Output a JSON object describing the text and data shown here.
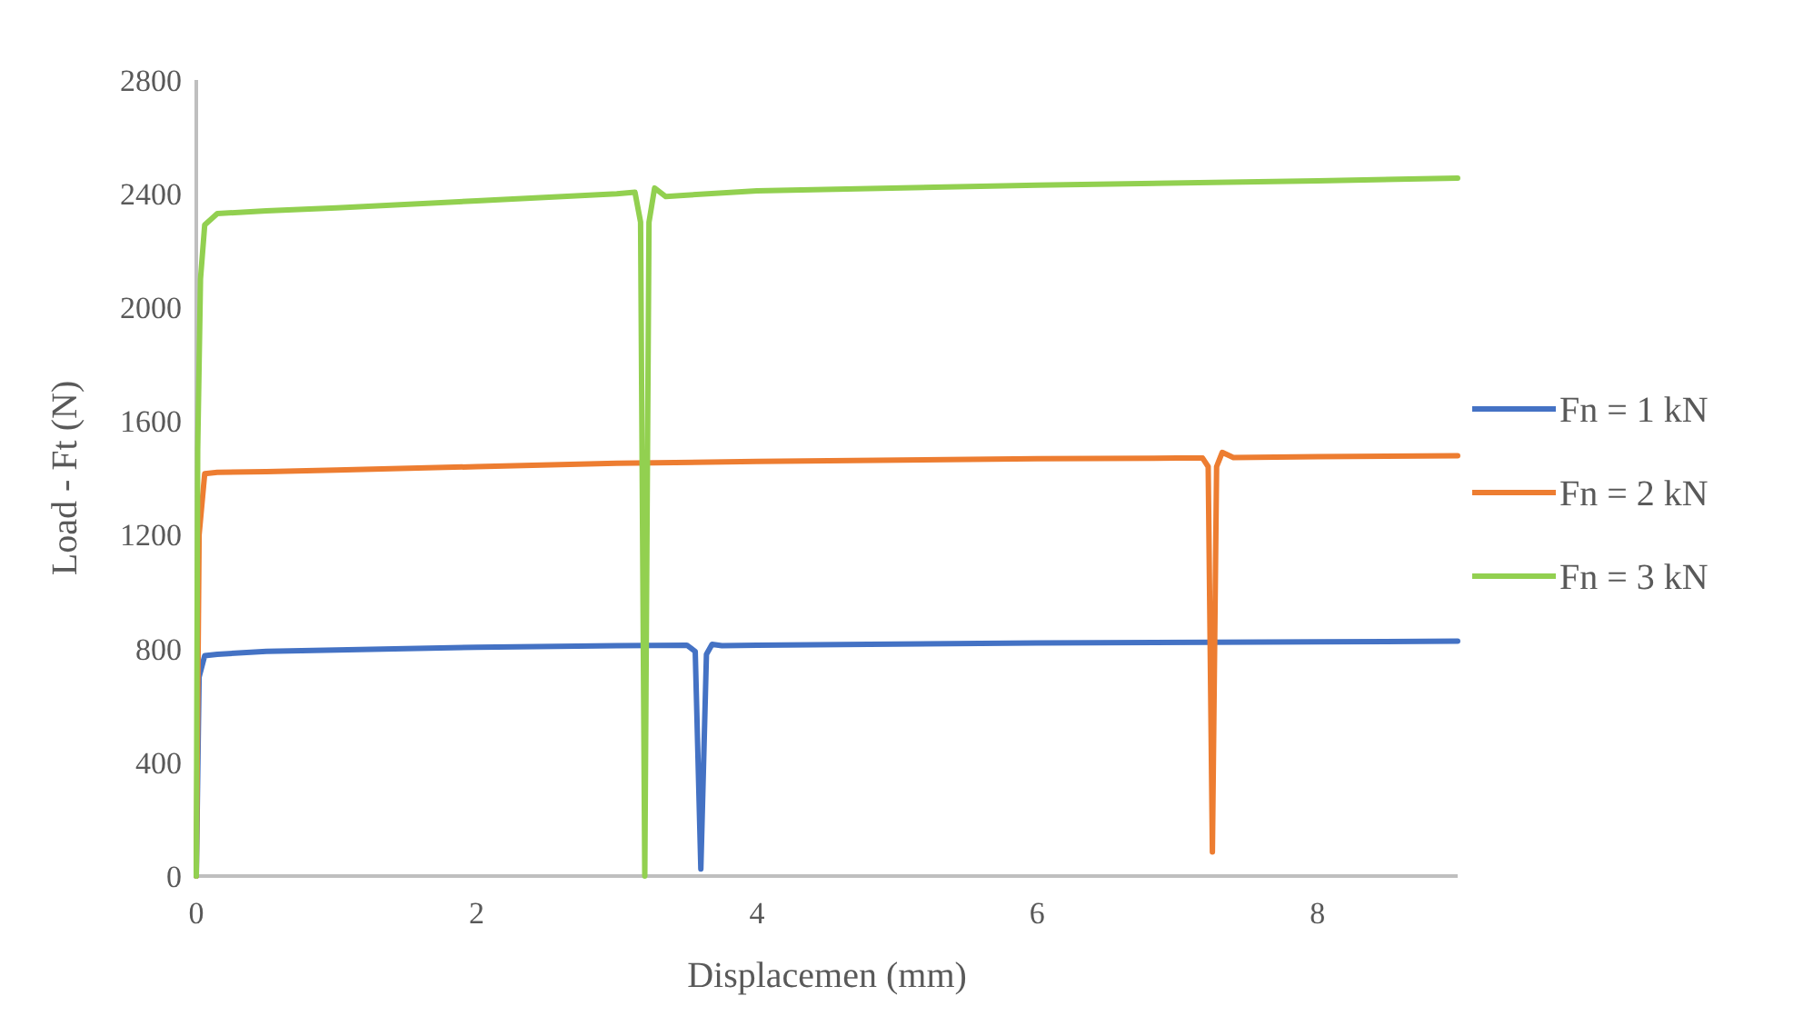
{
  "chart_data": {
    "type": "line",
    "xlabel": "Displacemen (mm)",
    "ylabel": "Load - Ft (N)",
    "xlim": [
      0,
      9
    ],
    "xticks": [
      0,
      2,
      4,
      6,
      8
    ],
    "ylim": [
      0,
      2800
    ],
    "yticks": [
      0,
      400,
      800,
      1200,
      1600,
      2000,
      2400,
      2800
    ],
    "grid": false,
    "legend": "right",
    "marker": "none",
    "line_style": "solid",
    "series": [
      {
        "name": "Fn = 1 kN",
        "color": "#4472c4",
        "x": [
          0,
          0.02,
          0.06,
          0.15,
          0.5,
          1,
          2,
          3,
          3.5,
          3.56,
          3.6,
          3.64,
          3.68,
          3.75,
          4,
          6,
          8,
          9
        ],
        "values": [
          0,
          700,
          775,
          780,
          790,
          795,
          805,
          810,
          812,
          790,
          25,
          780,
          815,
          810,
          812,
          820,
          824,
          826
        ]
      },
      {
        "name": "Fn = 2 kN",
        "color": "#ed7d31",
        "x": [
          0,
          0.02,
          0.06,
          0.15,
          0.5,
          1,
          2,
          3,
          4,
          6,
          7,
          7.18,
          7.22,
          7.25,
          7.28,
          7.32,
          7.4,
          8,
          9
        ],
        "values": [
          0,
          1200,
          1415,
          1420,
          1422,
          1428,
          1440,
          1452,
          1458,
          1468,
          1470,
          1470,
          1440,
          85,
          1440,
          1490,
          1472,
          1475,
          1478
        ]
      },
      {
        "name": "Fn = 3 kN",
        "color": "#92d050",
        "x": [
          0,
          0.01,
          0.03,
          0.06,
          0.15,
          0.5,
          1,
          2,
          3,
          3.13,
          3.17,
          3.2,
          3.23,
          3.27,
          3.35,
          3.5,
          4,
          6,
          8,
          9
        ],
        "values": [
          0,
          1500,
          2100,
          2290,
          2330,
          2340,
          2350,
          2375,
          2400,
          2405,
          2300,
          0,
          2300,
          2420,
          2390,
          2395,
          2410,
          2430,
          2445,
          2455
        ]
      }
    ]
  }
}
